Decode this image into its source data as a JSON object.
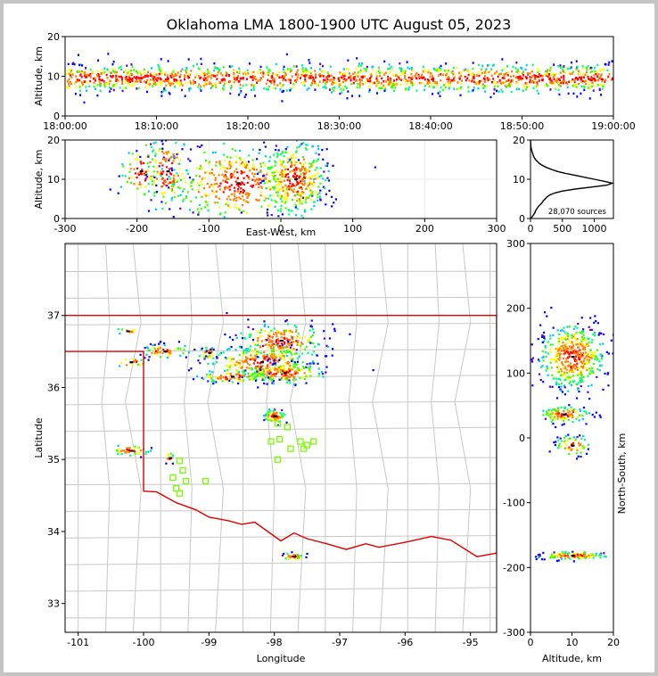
{
  "title": "Oklahoma LMA 1800-1900 UTC August 05, 2023",
  "colors": {
    "border": "#e00000",
    "counties": "#c8c8c8",
    "stations": "#7cfc00",
    "axis": "#000000",
    "page_margin": "#c4c4c4"
  },
  "chart_data": [
    {
      "id": "time-altitude",
      "type": "heatmap",
      "ylabel": "Altitude, km",
      "xlim": [
        "18:00:00",
        "19:00:00"
      ],
      "ylim": [
        0,
        20
      ],
      "xticks": [
        "18:00:00",
        "18:10:00",
        "18:20:00",
        "18:30:00",
        "18:40:00",
        "18:50:00",
        "19:00:00"
      ],
      "yticks": [
        0,
        10,
        20
      ],
      "band_center_km": 9.5,
      "band_halfwidth_km": 4
    },
    {
      "id": "ew-altitude",
      "type": "heatmap",
      "xlabel": "East-West, km",
      "ylabel": "Altitude, km",
      "xlim": [
        -300,
        300
      ],
      "ylim": [
        0,
        20
      ],
      "xticks": [
        -300,
        -200,
        -100,
        0,
        100,
        200,
        300
      ],
      "yticks": [
        0,
        10,
        20
      ],
      "clusters": [
        {
          "x": -195,
          "y": 12,
          "wx": 14,
          "wy": 4,
          "n": 70
        },
        {
          "x": -158,
          "y": 12,
          "wx": 16,
          "wy": 5,
          "n": 140
        },
        {
          "x": -60,
          "y": 9,
          "wx": 50,
          "wy": 5,
          "n": 420
        },
        {
          "x": 20,
          "y": 10,
          "wx": 22,
          "wy": 5,
          "n": 360
        }
      ]
    },
    {
      "id": "altitude-histogram",
      "type": "line",
      "annotation": "28,070 sources",
      "xlim": [
        0,
        1300
      ],
      "ylim": [
        0,
        20
      ],
      "xticks": [
        0,
        500,
        1000
      ],
      "yticks": [
        0,
        10,
        20
      ],
      "y": [
        0,
        0.5,
        1,
        1.5,
        2,
        2.5,
        3,
        3.5,
        4,
        4.5,
        5,
        5.5,
        6,
        6.5,
        7,
        7.5,
        8,
        8.5,
        9,
        9.5,
        10,
        10.5,
        11,
        11.5,
        12,
        12.5,
        13,
        13.5,
        14,
        14.5,
        15,
        15.5,
        16,
        16.5,
        17,
        17.5,
        18,
        18.5,
        19,
        19.5,
        20
      ],
      "x": [
        0,
        30,
        50,
        70,
        80,
        100,
        120,
        150,
        180,
        200,
        230,
        260,
        300,
        380,
        500,
        700,
        950,
        1200,
        1280,
        1150,
        1000,
        850,
        700,
        550,
        420,
        330,
        250,
        190,
        140,
        110,
        80,
        60,
        45,
        35,
        25,
        15,
        10,
        6,
        4,
        2,
        0
      ]
    },
    {
      "id": "plan-view",
      "type": "heatmap",
      "xlabel": "Longitude",
      "ylabel": "Latitude",
      "xlim": [
        -101.2,
        -94.6
      ],
      "ylim": [
        32.6,
        38.0
      ],
      "xticks": [
        -101,
        -100,
        -99,
        -98,
        -97,
        -96,
        -95
      ],
      "yticks": [
        33,
        34,
        35,
        36,
        37
      ],
      "state_border": [
        [
          -101.2,
          37.0
        ],
        [
          -94.6,
          37.0
        ],
        [
          -94.6,
          36.5
        ],
        [
          -94.6,
          33.7
        ],
        [
          -94.9,
          33.65
        ],
        [
          -95.3,
          33.88
        ],
        [
          -95.6,
          33.93
        ],
        [
          -96.0,
          33.85
        ],
        [
          -96.4,
          33.78
        ],
        [
          -96.6,
          33.83
        ],
        [
          -96.9,
          33.75
        ],
        [
          -97.2,
          33.83
        ],
        [
          -97.5,
          33.9
        ],
        [
          -97.7,
          33.98
        ],
        [
          -97.9,
          33.87
        ],
        [
          -98.1,
          34.0
        ],
        [
          -98.3,
          34.13
        ],
        [
          -98.5,
          34.1
        ],
        [
          -98.7,
          34.15
        ],
        [
          -99.0,
          34.2
        ],
        [
          -99.2,
          34.3
        ],
        [
          -99.5,
          34.4
        ],
        [
          -99.8,
          34.55
        ],
        [
          -100.0,
          34.56
        ],
        [
          -100.0,
          36.5
        ],
        [
          -101.2,
          36.5
        ]
      ],
      "stations": [
        [
          -99.45,
          34.98
        ],
        [
          -99.4,
          34.85
        ],
        [
          -99.55,
          34.75
        ],
        [
          -99.35,
          34.7
        ],
        [
          -99.5,
          34.6
        ],
        [
          -99.45,
          34.53
        ],
        [
          -99.05,
          34.7
        ],
        [
          -97.95,
          35.5
        ],
        [
          -97.8,
          35.45
        ],
        [
          -98.05,
          35.25
        ],
        [
          -97.92,
          35.28
        ],
        [
          -97.6,
          35.25
        ],
        [
          -97.5,
          35.2
        ],
        [
          -97.4,
          35.25
        ],
        [
          -97.75,
          35.15
        ],
        [
          -97.55,
          35.15
        ],
        [
          -97.95,
          35.0
        ]
      ],
      "clusters": [
        {
          "x": -99.0,
          "y": 36.48,
          "wx": 0.08,
          "wy": 0.04,
          "n": 30
        },
        {
          "x": -99.68,
          "y": 36.5,
          "wx": 0.18,
          "wy": 0.05,
          "n": 60
        },
        {
          "x": -100.25,
          "y": 36.78,
          "wx": 0.12,
          "wy": 0.02,
          "n": 12
        },
        {
          "x": -100.2,
          "y": 36.35,
          "wx": 0.12,
          "wy": 0.04,
          "n": 15
        },
        {
          "x": -97.9,
          "y": 36.65,
          "wx": 0.35,
          "wy": 0.12,
          "n": 220
        },
        {
          "x": -98.2,
          "y": 36.35,
          "wx": 0.4,
          "wy": 0.12,
          "n": 260
        },
        {
          "x": -97.85,
          "y": 36.2,
          "wx": 0.3,
          "wy": 0.07,
          "n": 160
        },
        {
          "x": -98.65,
          "y": 36.15,
          "wx": 0.25,
          "wy": 0.05,
          "n": 80
        },
        {
          "x": -98.0,
          "y": 35.6,
          "wx": 0.08,
          "wy": 0.05,
          "n": 70
        },
        {
          "x": -100.2,
          "y": 35.12,
          "wx": 0.15,
          "wy": 0.04,
          "n": 40
        },
        {
          "x": -99.6,
          "y": 35.02,
          "wx": 0.04,
          "wy": 0.04,
          "n": 12
        },
        {
          "x": -97.7,
          "y": 33.65,
          "wx": 0.08,
          "wy": 0.03,
          "n": 30
        }
      ]
    },
    {
      "id": "altitude-ns",
      "type": "heatmap",
      "xlabel": "Altitude, km",
      "ylabel": "North-South, km",
      "xlim": [
        0,
        20
      ],
      "ylim": [
        -300,
        300
      ],
      "xticks": [
        0,
        10,
        20
      ],
      "yticks": [
        -300,
        -200,
        -100,
        0,
        100,
        200,
        300
      ],
      "clusters": [
        {
          "x": 10,
          "y": 125,
          "wx": 4,
          "wy": 25,
          "n": 480
        },
        {
          "x": 8,
          "y": 36,
          "wx": 3,
          "wy": 6,
          "n": 110
        },
        {
          "x": 10,
          "y": -12,
          "wx": 2,
          "wy": 8,
          "n": 60
        },
        {
          "x": 10,
          "y": -182,
          "wx": 4,
          "wy": 3,
          "n": 120
        }
      ]
    }
  ]
}
